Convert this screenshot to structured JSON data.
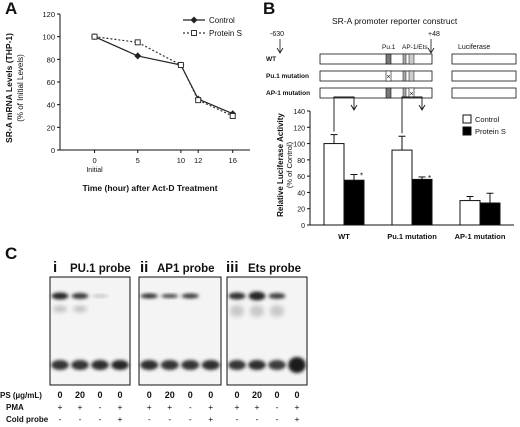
{
  "panel_letters": {
    "a": "A",
    "b": "B",
    "c": "C"
  },
  "chart_data": [
    {
      "type": "line",
      "x": [
        0,
        5,
        10,
        12,
        16
      ],
      "x_tick_labels": [
        "0",
        "5",
        "10",
        "12",
        "16"
      ],
      "x_sub_label": "Initial",
      "series": [
        {
          "name": "Control",
          "values": [
            100,
            83,
            75,
            45,
            32
          ]
        },
        {
          "name": "Protein S",
          "values": [
            100,
            95,
            75,
            44,
            30
          ]
        }
      ],
      "ylim": [
        0,
        120
      ],
      "y_ticks": [
        0,
        20,
        40,
        60,
        80,
        100,
        120
      ],
      "ylabel": "SR-A mRNA Levels (THP-1)",
      "ylabel_sub": "(% of Initial Levels)",
      "xlabel": "Time (hour) after Act-D Treatment",
      "legend_position": "top-right",
      "colors": {
        "Control": "#222222",
        "Protein S": "#555555"
      }
    },
    {
      "type": "bar",
      "categories": [
        "WT",
        "Pu.1 mutation",
        "AP-1 mutation"
      ],
      "series": [
        {
          "name": "Control",
          "values": [
            100,
            92,
            30
          ],
          "errors": [
            11,
            17,
            5
          ]
        },
        {
          "name": "Protein S",
          "values": [
            55,
            56,
            27
          ],
          "errors": [
            7,
            3,
            12
          ]
        }
      ],
      "significance": [
        "*",
        "*",
        ""
      ],
      "ylim": [
        0,
        140
      ],
      "y_ticks": [
        0,
        20,
        40,
        60,
        80,
        100,
        120,
        140
      ],
      "ylabel": "Relative Luciferase Activity",
      "ylabel_sub": "(% of Control)",
      "legend_position": "top-right",
      "colors": {
        "Control": "#ffffff",
        "Protein S": "#000000"
      }
    }
  ],
  "construct": {
    "title": "SR-A promoter reporter construct",
    "pos_start": "-630",
    "pos_end": "+48",
    "element_pu1": "Pu.1",
    "element_ap1": "AP-1/Ets",
    "reporter": "Luciferase",
    "rows": [
      "WT",
      "Pu.1 mutation",
      "AP-1 mutation"
    ]
  },
  "gels": [
    {
      "numeral": "i",
      "probe": "PU.1 probe"
    },
    {
      "numeral": "ii",
      "probe": "AP1 probe"
    },
    {
      "numeral": "iii",
      "probe": "Ets probe"
    }
  ],
  "conditions": {
    "row_labels": [
      "PS (µg/mL)",
      "PMA",
      "Cold probe"
    ],
    "ps": [
      "0",
      "20",
      "0",
      "0"
    ],
    "pma": [
      "+",
      "+",
      "-",
      "+"
    ],
    "cold": [
      "-",
      "-",
      "-",
      "+"
    ]
  }
}
